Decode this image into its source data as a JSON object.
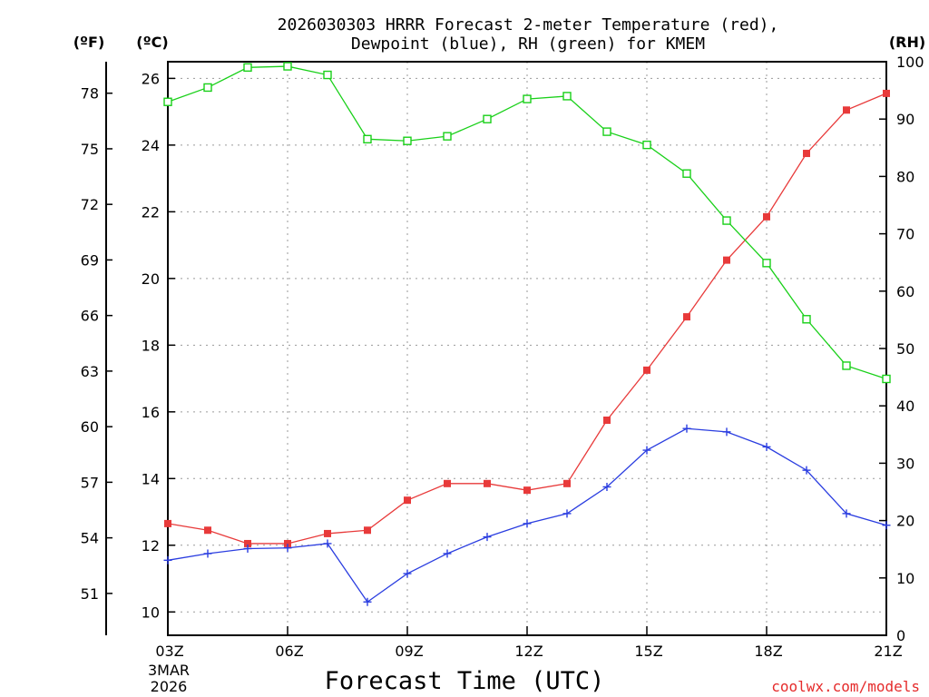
{
  "chart_data": {
    "type": "line",
    "title_line1": "2026030303 HRRR Forecast 2-meter Temperature (red),",
    "title_line2": "Dewpoint (blue), RH (green) for KMEM",
    "xlabel": "Forecast Time (UTC)",
    "credit": "coolwx.com/models",
    "units": {
      "fahrenheit": "(ºF)",
      "celsius": "(ºC)",
      "rh": "(RH)"
    },
    "x_ticks": [
      {
        "hour": 3,
        "label": "03Z"
      },
      {
        "hour": 6,
        "label": "06Z"
      },
      {
        "hour": 9,
        "label": "09Z"
      },
      {
        "hour": 12,
        "label": "12Z"
      },
      {
        "hour": 15,
        "label": "15Z"
      },
      {
        "hour": 18,
        "label": "18Z"
      },
      {
        "hour": 21,
        "label": "21Z"
      }
    ],
    "date_label_line1": "3MAR",
    "date_label_line2": "2026",
    "xlim": [
      3,
      21
    ],
    "celsius_axis": {
      "lim": [
        9.3,
        26.5
      ],
      "ticks": [
        10,
        12,
        14,
        16,
        18,
        20,
        22,
        24,
        26
      ]
    },
    "fahrenheit_axis": {
      "ticks": [
        51,
        54,
        57,
        60,
        63,
        66,
        69,
        72,
        75,
        78
      ]
    },
    "rh_axis": {
      "lim": [
        0,
        100
      ],
      "ticks": [
        0,
        10,
        20,
        30,
        40,
        50,
        60,
        70,
        80,
        90,
        100
      ]
    },
    "hours": [
      3,
      4,
      5,
      6,
      7,
      8,
      9,
      10,
      11,
      12,
      13,
      14,
      15,
      16,
      17,
      18,
      19,
      20,
      21
    ],
    "series": [
      {
        "name": "Temperature",
        "axis": "celsius",
        "color": "#e83a3a",
        "marker": "filled-square",
        "values": [
          12.65,
          12.45,
          12.05,
          12.05,
          12.35,
          12.45,
          13.35,
          13.85,
          13.85,
          13.65,
          13.85,
          15.75,
          17.25,
          18.85,
          20.55,
          21.85,
          23.75,
          25.05,
          25.55
        ]
      },
      {
        "name": "Dewpoint",
        "axis": "celsius",
        "color": "#2a3de0",
        "marker": "plus",
        "values": [
          11.55,
          11.75,
          11.9,
          11.92,
          12.05,
          10.3,
          11.15,
          11.75,
          12.25,
          12.65,
          12.95,
          13.75,
          14.85,
          15.5,
          15.4,
          14.95,
          14.25,
          12.95,
          12.6
        ]
      },
      {
        "name": "RH",
        "axis": "rh",
        "color": "#19d019",
        "marker": "open-square",
        "values": [
          93,
          95.5,
          99,
          99.2,
          97.7,
          86.5,
          86.2,
          87,
          90,
          93.5,
          94,
          87.8,
          85.5,
          80.5,
          72.3,
          64.9,
          55.1,
          47,
          44.7
        ]
      }
    ]
  }
}
